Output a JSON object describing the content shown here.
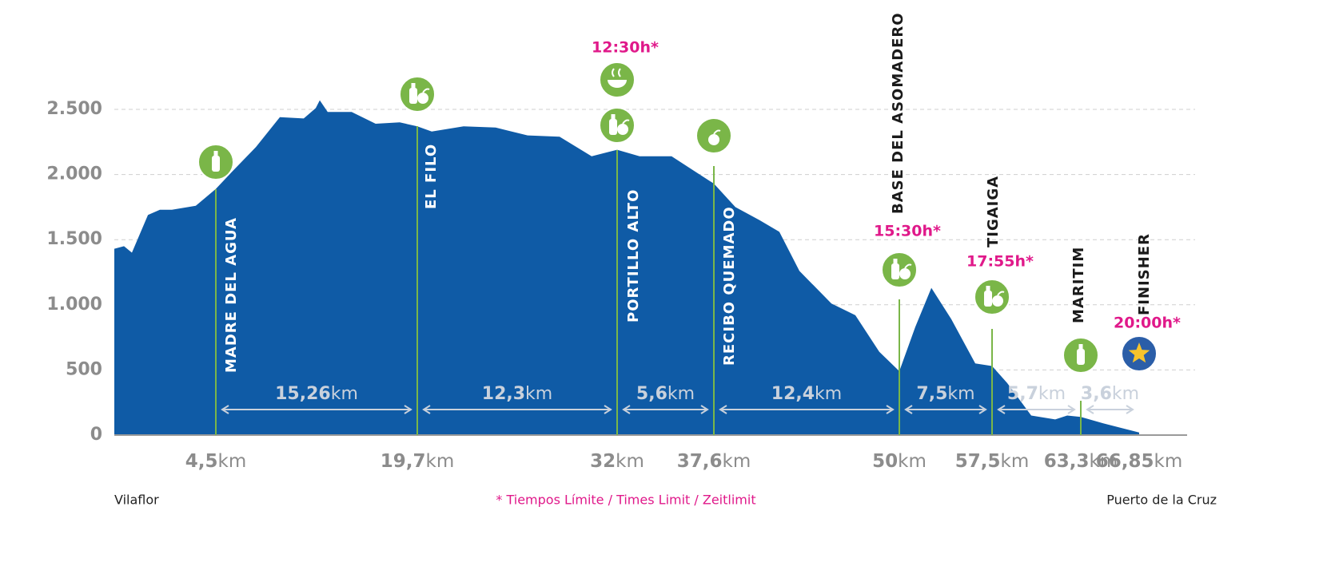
{
  "chart_data": {
    "type": "area",
    "color": "#0f5ba6",
    "grid": true,
    "unit": "km",
    "xlim": [
      0,
      66.85
    ],
    "ylim": [
      0,
      2500
    ],
    "yticks": [
      0,
      500,
      {
        "value": 1000,
        "label": "1.000"
      },
      {
        "value": 1500,
        "label": "1.500"
      },
      {
        "value": 2000,
        "label": "2.000"
      },
      {
        "value": 2500,
        "label": "2.500"
      }
    ],
    "start_label": "Vilaflor",
    "end_label": "Puerto de la Cruz",
    "footnote": "* Tiempos Límite / Times Limit / Zeitlimit",
    "profile": {
      "x": [
        0,
        0.43,
        0.78,
        1.49,
        2.02,
        2.55,
        3.61,
        4.5,
        5.71,
        7.52,
        9.33,
        11.13,
        12.04,
        12.34,
        12.94,
        14.75,
        16.56,
        18.37,
        19.7,
        20.59,
        22.55,
        24.52,
        26.49,
        28.46,
        30.43,
        32,
        33.3,
        35.15,
        36.54,
        37.6,
        39.04,
        40.65,
        41.98,
        43.32,
        45.46,
        47.06,
        48.66,
        50,
        51.29,
        52.59,
        54.2,
        56.14,
        57.5,
        58.49,
        60.06,
        61.63,
        62.41,
        63.3,
        64.66,
        66.85
      ],
      "elevation": [
        1430,
        1450,
        1400,
        1690,
        1730,
        1730,
        1760,
        1890,
        2020,
        2210,
        2440,
        2430,
        2510,
        2570,
        2480,
        2480,
        2390,
        2400,
        2370,
        2330,
        2370,
        2360,
        2300,
        2290,
        2140,
        2190,
        2140,
        2140,
        2020,
        1930,
        1750,
        1650,
        1560,
        1260,
        1010,
        920,
        640,
        490,
        830,
        1130,
        890,
        550,
        530,
        400,
        150,
        120,
        150,
        140,
        90,
        20
      ]
    },
    "checkpoints": [
      {
        "name": "MADRE DEL AGUA",
        "km": 4.5,
        "km_label": "4,5"
      },
      {
        "name": "EL FILO",
        "km": 19.7,
        "km_label": "19,7"
      },
      {
        "name": "PORTILLO ALTO",
        "km": 32,
        "time": "12:30h*"
      },
      {
        "name": "RECIBO QUEMADO",
        "km": 37.6,
        "km_label": "37,6"
      },
      {
        "name": "BASE DEL ASOMADERO",
        "km": 50,
        "time": "15:30h*"
      },
      {
        "name": "TIGAIGA",
        "km": 57.5,
        "km_label": "57,5",
        "time": "17:55h*"
      },
      {
        "name": "MARITIM",
        "km": 63.3,
        "km_label": "63,3"
      },
      {
        "name": "FINISHER",
        "km": 66.85,
        "km_label": "66,85",
        "time": "20:00h*"
      }
    ],
    "segments": [
      {
        "value": 15.26,
        "label": "15,26"
      },
      {
        "value": 12.3,
        "label": "12,3"
      },
      {
        "value": 5.6,
        "label": "5,6"
      },
      {
        "value": 12.4,
        "label": "12,4"
      },
      {
        "value": 7.5,
        "label": "7,5"
      },
      {
        "value": 5.7,
        "label": "5,7"
      },
      {
        "value": 3.6,
        "label": "3,6"
      }
    ]
  }
}
